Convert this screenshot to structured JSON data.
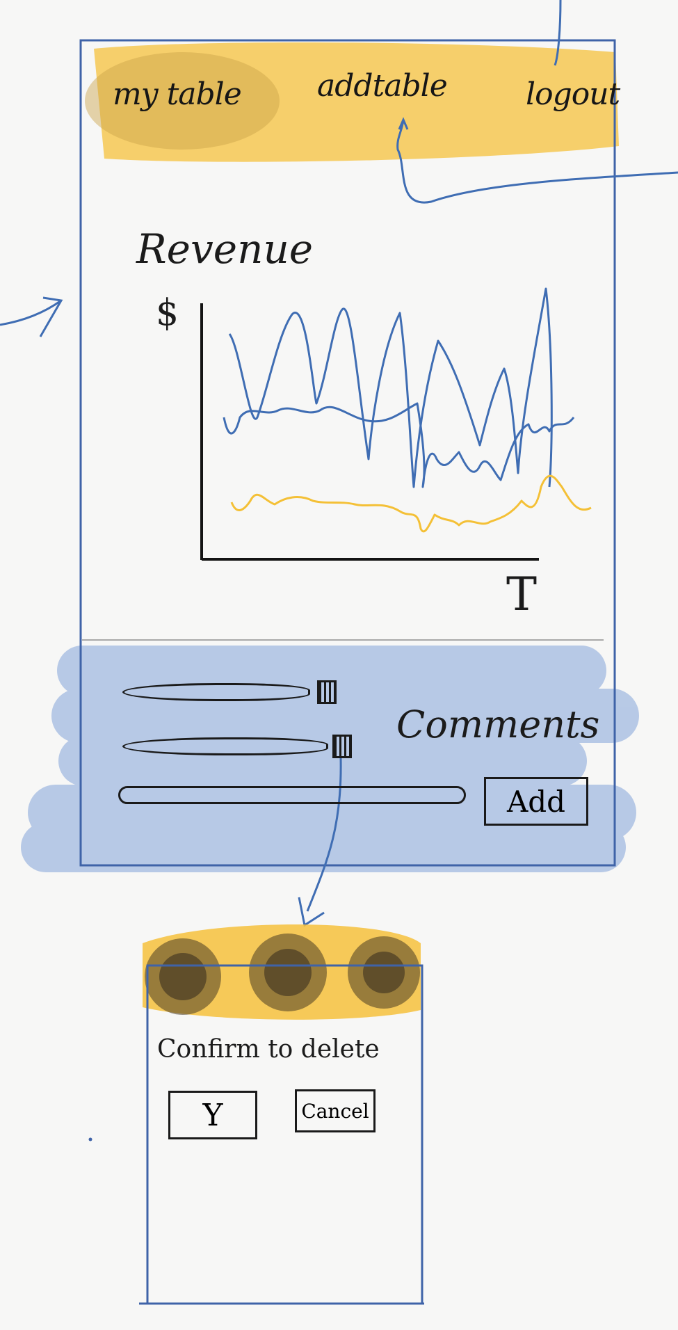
{
  "nav": {
    "items": [
      {
        "label": "my table"
      },
      {
        "label": "addtable"
      },
      {
        "label": "logout"
      }
    ]
  },
  "chart": {
    "title": "Revenue",
    "y_axis_label": "$",
    "x_axis_label": "T"
  },
  "chart_data": {
    "type": "line",
    "title": "Revenue",
    "ylabel": "$",
    "xlabel": "T",
    "grid": false,
    "legend": "none",
    "series": [
      {
        "color": "#3f6db3"
      },
      {
        "color": "#f4c036"
      }
    ]
  },
  "comments": {
    "label": "Comments",
    "add_label": "Add",
    "rows": [
      {},
      {}
    ]
  },
  "confirm_modal": {
    "message": "Confirm to delete",
    "yes_label": "Y",
    "cancel_label": "Cancel"
  },
  "colors": {
    "frame_blue": "#3f63a8",
    "highlight_yellow": "#f6c13c",
    "highlight_blue": "#9db6e0",
    "ink": "#1b1b1b"
  }
}
